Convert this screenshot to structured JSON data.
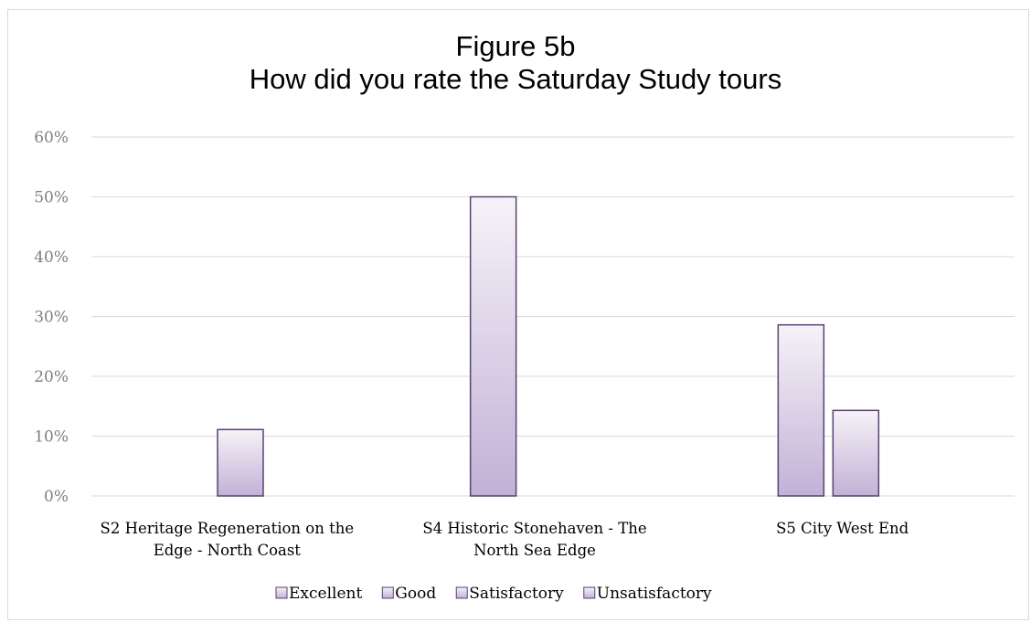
{
  "chart_data": {
    "type": "bar",
    "title": "Figure 5b",
    "subtitle": "How did you rate the Saturday Study tours",
    "categories": [
      [
        "S2 Heritage Regeneration on the",
        "Edge - North Coast"
      ],
      [
        "S4 Historic Stonehaven - The",
        "North Sea Edge"
      ],
      [
        "S5 City West End"
      ]
    ],
    "series": [
      {
        "name": "Excellent",
        "values": [
          0,
          50,
          28.6
        ]
      },
      {
        "name": "Good",
        "values": [
          11.1,
          0,
          14.3
        ]
      },
      {
        "name": "Satisfactory",
        "values": [
          0,
          0,
          0
        ]
      },
      {
        "name": "Unsatisfactory",
        "values": [
          0,
          0,
          0
        ]
      }
    ],
    "ylim": [
      0,
      60
    ],
    "yticks": [
      "0%",
      "10%",
      "20%",
      "30%",
      "40%",
      "50%",
      "60%"
    ],
    "grid": true,
    "legend_position": "bottom",
    "colors": {
      "bar_top": "#f5f3f8",
      "bar_bottom": "#c2b1d6",
      "bar_border": "#5a4175",
      "gridline": "#d9d9d9"
    }
  }
}
